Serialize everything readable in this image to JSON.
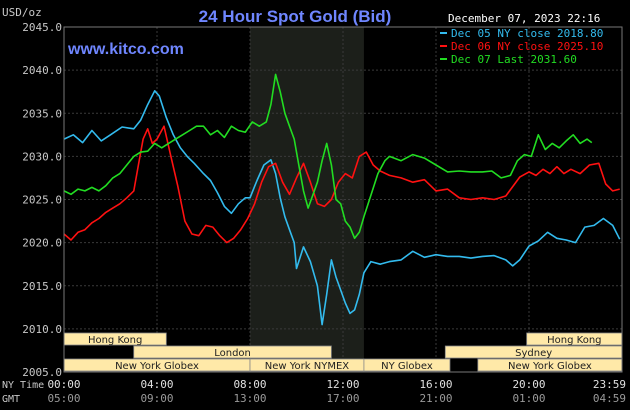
{
  "colors": {
    "background": "#000000",
    "plot_background": "#000000",
    "ny_session_shade": "#1c1f1a",
    "grid": "#3a3a3a",
    "axis_text": "#c8c8c8",
    "title": "#6f86ff",
    "site": "#6f86ff",
    "header_text": "#ffffff",
    "market_box": "#ffe9a8",
    "market_text": "#202020",
    "market_border": "#888888",
    "dec05": "#33bbee",
    "dec06": "#ff1111",
    "dec07": "#22dd22"
  },
  "header": {
    "unit": "USD/oz",
    "title": "24 Hour Spot Gold (Bid)",
    "site": "www.kitco.com",
    "timestamp": "December 07, 2023 22:16"
  },
  "chart_data": {
    "type": "line",
    "title": "24 Hour Spot Gold (Bid)",
    "ylabel": "USD/oz",
    "ylim": [
      2005,
      2045
    ],
    "yticks": [
      2005,
      2010,
      2015,
      2020,
      2025,
      2030,
      2035,
      2040,
      2045
    ],
    "ytick_labels": [
      "2005.0",
      "2010.0",
      "2015.0",
      "2020.0",
      "2025.0",
      "2030.0",
      "2035.0",
      "2040.0",
      "2045.0"
    ],
    "xlim": [
      0,
      24
    ],
    "xticks": [
      0,
      4,
      8,
      12,
      16,
      20,
      24
    ],
    "xtick_labels_ny": [
      "00:00",
      "04:00",
      "08:00",
      "12:00",
      "16:00",
      "20:00",
      "23:59"
    ],
    "xtick_labels_gmt": [
      "05:00",
      "09:00",
      "13:00",
      "17:00",
      "21:00",
      "01:00",
      "04:59"
    ],
    "x_row_labels": [
      "NY Time",
      "GMT"
    ],
    "grid": true,
    "shaded_ny_session": [
      8.0,
      12.9
    ],
    "legend_position": "top-right",
    "legend": [
      {
        "key": "dec05",
        "label": "Dec 05 NY close 2018.80"
      },
      {
        "key": "dec06",
        "label": "Dec 06 NY close 2025.10"
      },
      {
        "key": "dec07",
        "label": "Dec 07 Last 2031.60"
      }
    ],
    "series": [
      {
        "key": "dec05",
        "name": "Dec 05",
        "points": [
          [
            0.0,
            2032.0
          ],
          [
            0.4,
            2032.5
          ],
          [
            0.8,
            2031.6
          ],
          [
            1.2,
            2033.0
          ],
          [
            1.6,
            2031.8
          ],
          [
            2.0,
            2032.5
          ],
          [
            2.5,
            2033.4
          ],
          [
            3.0,
            2033.2
          ],
          [
            3.3,
            2034.2
          ],
          [
            3.6,
            2036.0
          ],
          [
            3.9,
            2037.6
          ],
          [
            4.1,
            2037.0
          ],
          [
            4.4,
            2034.5
          ],
          [
            4.7,
            2032.5
          ],
          [
            5.0,
            2031.0
          ],
          [
            5.3,
            2030.0
          ],
          [
            5.6,
            2029.2
          ],
          [
            6.0,
            2028.0
          ],
          [
            6.3,
            2027.2
          ],
          [
            6.6,
            2025.8
          ],
          [
            6.9,
            2024.2
          ],
          [
            7.2,
            2023.4
          ],
          [
            7.5,
            2024.5
          ],
          [
            7.8,
            2025.2
          ],
          [
            8.0,
            2025.2
          ],
          [
            8.3,
            2027.2
          ],
          [
            8.6,
            2029.0
          ],
          [
            8.9,
            2029.6
          ],
          [
            9.1,
            2028.0
          ],
          [
            9.3,
            2025.2
          ],
          [
            9.5,
            2023.0
          ],
          [
            9.7,
            2021.5
          ],
          [
            9.9,
            2020.0
          ],
          [
            10.0,
            2017.0
          ],
          [
            10.3,
            2019.5
          ],
          [
            10.6,
            2017.8
          ],
          [
            10.9,
            2015.0
          ],
          [
            11.1,
            2010.5
          ],
          [
            11.3,
            2014.0
          ],
          [
            11.5,
            2018.0
          ],
          [
            11.7,
            2016.0
          ],
          [
            11.9,
            2014.5
          ],
          [
            12.1,
            2013.0
          ],
          [
            12.3,
            2011.8
          ],
          [
            12.5,
            2012.2
          ],
          [
            12.7,
            2014.0
          ],
          [
            12.9,
            2016.5
          ],
          [
            13.2,
            2017.8
          ],
          [
            13.6,
            2017.5
          ],
          [
            14.0,
            2017.8
          ],
          [
            14.5,
            2018.0
          ],
          [
            15.0,
            2019.0
          ],
          [
            15.5,
            2018.3
          ],
          [
            16.0,
            2018.6
          ],
          [
            16.5,
            2018.4
          ],
          [
            17.0,
            2018.4
          ],
          [
            17.5,
            2018.2
          ],
          [
            18.0,
            2018.4
          ],
          [
            18.5,
            2018.5
          ],
          [
            19.0,
            2018.0
          ],
          [
            19.3,
            2017.3
          ],
          [
            19.6,
            2018.0
          ],
          [
            20.0,
            2019.6
          ],
          [
            20.4,
            2020.2
          ],
          [
            20.8,
            2021.2
          ],
          [
            21.2,
            2020.5
          ],
          [
            21.6,
            2020.3
          ],
          [
            22.0,
            2020.0
          ],
          [
            22.4,
            2021.8
          ],
          [
            22.8,
            2022.0
          ],
          [
            23.2,
            2022.8
          ],
          [
            23.6,
            2022.0
          ],
          [
            23.9,
            2020.4
          ]
        ]
      },
      {
        "key": "dec06",
        "name": "Dec 06",
        "points": [
          [
            0.0,
            2021.0
          ],
          [
            0.3,
            2020.3
          ],
          [
            0.6,
            2021.2
          ],
          [
            0.9,
            2021.5
          ],
          [
            1.2,
            2022.3
          ],
          [
            1.5,
            2022.8
          ],
          [
            1.8,
            2023.5
          ],
          [
            2.1,
            2024.0
          ],
          [
            2.4,
            2024.5
          ],
          [
            2.7,
            2025.2
          ],
          [
            3.0,
            2026.0
          ],
          [
            3.2,
            2029.0
          ],
          [
            3.4,
            2032.0
          ],
          [
            3.6,
            2033.2
          ],
          [
            3.8,
            2031.5
          ],
          [
            4.0,
            2032.0
          ],
          [
            4.3,
            2033.5
          ],
          [
            4.6,
            2030.0
          ],
          [
            4.9,
            2026.5
          ],
          [
            5.2,
            2022.5
          ],
          [
            5.5,
            2021.0
          ],
          [
            5.8,
            2020.8
          ],
          [
            6.1,
            2022.0
          ],
          [
            6.4,
            2021.8
          ],
          [
            6.7,
            2020.8
          ],
          [
            7.0,
            2020.0
          ],
          [
            7.3,
            2020.5
          ],
          [
            7.6,
            2021.5
          ],
          [
            7.9,
            2022.8
          ],
          [
            8.2,
            2024.5
          ],
          [
            8.5,
            2027.0
          ],
          [
            8.8,
            2028.8
          ],
          [
            9.1,
            2029.2
          ],
          [
            9.4,
            2027.0
          ],
          [
            9.7,
            2025.6
          ],
          [
            10.0,
            2027.5
          ],
          [
            10.3,
            2029.2
          ],
          [
            10.6,
            2027.0
          ],
          [
            10.9,
            2024.5
          ],
          [
            11.2,
            2024.2
          ],
          [
            11.5,
            2025.0
          ],
          [
            11.8,
            2027.0
          ],
          [
            12.1,
            2028.0
          ],
          [
            12.4,
            2027.5
          ],
          [
            12.7,
            2030.0
          ],
          [
            13.0,
            2030.5
          ],
          [
            13.3,
            2029.0
          ],
          [
            13.6,
            2028.3
          ],
          [
            14.0,
            2027.8
          ],
          [
            14.5,
            2027.5
          ],
          [
            15.0,
            2027.0
          ],
          [
            15.5,
            2027.3
          ],
          [
            16.0,
            2026.0
          ],
          [
            16.5,
            2026.2
          ],
          [
            17.0,
            2025.2
          ],
          [
            17.5,
            2025.0
          ],
          [
            18.0,
            2025.2
          ],
          [
            18.5,
            2025.0
          ],
          [
            19.0,
            2025.4
          ],
          [
            19.3,
            2026.5
          ],
          [
            19.6,
            2027.6
          ],
          [
            20.0,
            2028.2
          ],
          [
            20.3,
            2027.8
          ],
          [
            20.6,
            2028.5
          ],
          [
            20.9,
            2028.0
          ],
          [
            21.2,
            2028.8
          ],
          [
            21.5,
            2028.0
          ],
          [
            21.8,
            2028.5
          ],
          [
            22.2,
            2028.0
          ],
          [
            22.6,
            2029.0
          ],
          [
            23.0,
            2029.2
          ],
          [
            23.3,
            2026.8
          ],
          [
            23.6,
            2026.0
          ],
          [
            23.9,
            2026.2
          ]
        ]
      },
      {
        "key": "dec07",
        "name": "Dec 07",
        "points": [
          [
            0.0,
            2026.0
          ],
          [
            0.3,
            2025.6
          ],
          [
            0.6,
            2026.2
          ],
          [
            0.9,
            2026.0
          ],
          [
            1.2,
            2026.4
          ],
          [
            1.5,
            2026.0
          ],
          [
            1.8,
            2026.6
          ],
          [
            2.1,
            2027.5
          ],
          [
            2.4,
            2028.0
          ],
          [
            2.7,
            2029.0
          ],
          [
            3.0,
            2030.0
          ],
          [
            3.3,
            2030.5
          ],
          [
            3.6,
            2030.6
          ],
          [
            3.9,
            2031.5
          ],
          [
            4.2,
            2031.0
          ],
          [
            4.5,
            2031.5
          ],
          [
            4.8,
            2032.0
          ],
          [
            5.1,
            2032.5
          ],
          [
            5.4,
            2033.0
          ],
          [
            5.7,
            2033.5
          ],
          [
            6.0,
            2033.5
          ],
          [
            6.3,
            2032.5
          ],
          [
            6.6,
            2033.0
          ],
          [
            6.9,
            2032.2
          ],
          [
            7.2,
            2033.5
          ],
          [
            7.5,
            2033.0
          ],
          [
            7.8,
            2032.8
          ],
          [
            8.1,
            2034.0
          ],
          [
            8.4,
            2033.5
          ],
          [
            8.7,
            2034.0
          ],
          [
            8.9,
            2036.0
          ],
          [
            9.1,
            2039.5
          ],
          [
            9.3,
            2037.5
          ],
          [
            9.5,
            2035.0
          ],
          [
            9.7,
            2033.5
          ],
          [
            9.9,
            2032.0
          ],
          [
            10.1,
            2029.0
          ],
          [
            10.3,
            2026.0
          ],
          [
            10.5,
            2024.0
          ],
          [
            10.7,
            2025.5
          ],
          [
            10.9,
            2027.0
          ],
          [
            11.1,
            2029.5
          ],
          [
            11.3,
            2031.5
          ],
          [
            11.5,
            2029.0
          ],
          [
            11.7,
            2025.0
          ],
          [
            11.9,
            2024.5
          ],
          [
            12.1,
            2022.5
          ],
          [
            12.3,
            2021.8
          ],
          [
            12.5,
            2020.5
          ],
          [
            12.7,
            2021.2
          ],
          [
            12.9,
            2023.0
          ],
          [
            13.2,
            2025.5
          ],
          [
            13.5,
            2028.0
          ],
          [
            13.8,
            2029.5
          ],
          [
            14.0,
            2030.0
          ],
          [
            14.5,
            2029.5
          ],
          [
            15.0,
            2030.2
          ],
          [
            15.5,
            2029.8
          ],
          [
            16.0,
            2029.0
          ],
          [
            16.5,
            2028.2
          ],
          [
            17.0,
            2028.3
          ],
          [
            17.5,
            2028.2
          ],
          [
            18.0,
            2028.2
          ],
          [
            18.4,
            2028.3
          ],
          [
            18.8,
            2027.5
          ],
          [
            19.2,
            2027.8
          ],
          [
            19.5,
            2029.5
          ],
          [
            19.8,
            2030.2
          ],
          [
            20.1,
            2030.0
          ],
          [
            20.4,
            2032.5
          ],
          [
            20.7,
            2030.8
          ],
          [
            21.0,
            2031.5
          ],
          [
            21.3,
            2031.0
          ],
          [
            21.6,
            2031.8
          ],
          [
            21.9,
            2032.5
          ],
          [
            22.2,
            2031.5
          ],
          [
            22.5,
            2032.0
          ],
          [
            22.7,
            2031.6
          ]
        ]
      }
    ],
    "market_sessions": [
      {
        "name": "Hong Kong",
        "row": 0,
        "start": 0,
        "end": 4.4
      },
      {
        "name": "Hong Kong",
        "row": 0,
        "start": 19.9,
        "end": 24
      },
      {
        "name": "London",
        "row": 1,
        "start": 3.0,
        "end": 11.5
      },
      {
        "name": "Sydney",
        "row": 1,
        "start": 16.4,
        "end": 24
      },
      {
        "name": "New York Globex",
        "row": 2,
        "start": 0,
        "end": 8.0
      },
      {
        "name": "New York NYMEX",
        "row": 2,
        "start": 8.0,
        "end": 12.9
      },
      {
        "name": "NY Globex",
        "row": 2,
        "start": 12.9,
        "end": 16.6
      },
      {
        "name": "New York Globex",
        "row": 2,
        "start": 17.8,
        "end": 24
      }
    ]
  }
}
